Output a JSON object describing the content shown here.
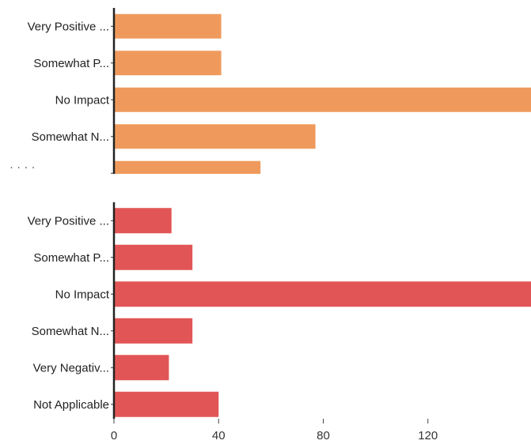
{
  "chart_data": [
    {
      "type": "bar",
      "orientation": "horizontal",
      "categories": [
        "Very Positive ...",
        "Somewhat P...",
        "No Impact",
        "Somewhat N...",
        ""
      ],
      "values": [
        41,
        41,
        160,
        77,
        56
      ],
      "color": "#ef9a5c",
      "xlim": [
        0,
        160
      ],
      "grid": false
    },
    {
      "type": "bar",
      "orientation": "horizontal",
      "categories": [
        "Very Positive ...",
        "Somewhat P...",
        "No Impact",
        "Somewhat N...",
        "Very Negativ...",
        "Not Applicable"
      ],
      "values": [
        22,
        30,
        160,
        30,
        21,
        40
      ],
      "color": "#e25556",
      "xlim": [
        0,
        160
      ],
      "grid": false,
      "x_ticks": [
        0,
        40,
        80,
        120
      ]
    }
  ]
}
